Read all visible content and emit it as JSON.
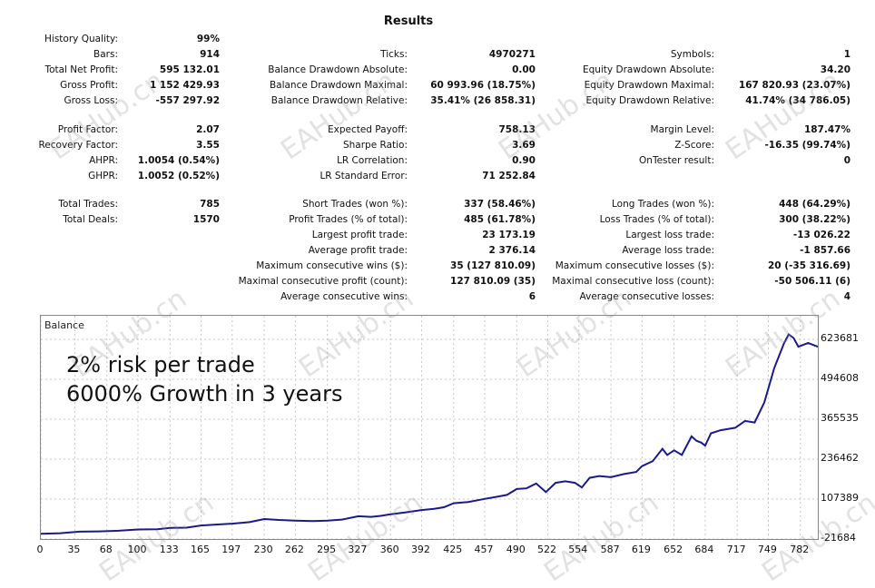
{
  "report": {
    "title": "Results",
    "col1": [
      {
        "label": "History Quality:",
        "value": "99%"
      },
      {
        "label": "Bars:",
        "value": "914"
      },
      {
        "label": "Total Net Profit:",
        "value": "595 132.01"
      },
      {
        "label": "Gross Profit:",
        "value": "1 152 429.93"
      },
      {
        "label": "Gross Loss:",
        "value": "-557 297.92"
      },
      {
        "label": "Profit Factor:",
        "value": "2.07"
      },
      {
        "label": "Recovery Factor:",
        "value": "3.55"
      },
      {
        "label": "AHPR:",
        "value": "1.0054 (0.54%)"
      },
      {
        "label": "GHPR:",
        "value": "1.0052 (0.52%)"
      },
      {
        "label": "Total Trades:",
        "value": "785"
      },
      {
        "label": "Total Deals:",
        "value": "1570"
      }
    ],
    "col2": [
      {
        "label": "Ticks:",
        "value": "4970271"
      },
      {
        "label": "Balance Drawdown Absolute:",
        "value": "0.00"
      },
      {
        "label": "Balance Drawdown Maximal:",
        "value": "60 993.96 (18.75%)"
      },
      {
        "label": "Balance Drawdown Relative:",
        "value": "35.41% (26 858.31)"
      },
      {
        "label": "Expected Payoff:",
        "value": "758.13"
      },
      {
        "label": "Sharpe Ratio:",
        "value": "3.69"
      },
      {
        "label": "LR Correlation:",
        "value": "0.90"
      },
      {
        "label": "LR Standard Error:",
        "value": "71 252.84"
      },
      {
        "label": "Short Trades (won %):",
        "value": "337 (58.46%)"
      },
      {
        "label": "Profit Trades (% of total):",
        "value": "485 (61.78%)"
      },
      {
        "label": "Largest profit trade:",
        "value": "23 173.19"
      },
      {
        "label": "Average profit trade:",
        "value": "2 376.14"
      },
      {
        "label": "Maximum consecutive wins ($):",
        "value": "35 (127 810.09)"
      },
      {
        "label": "Maximal consecutive profit (count):",
        "value": "127 810.09 (35)"
      },
      {
        "label": "Average consecutive wins:",
        "value": "6"
      }
    ],
    "col3": [
      {
        "label": "Symbols:",
        "value": "1"
      },
      {
        "label": "Equity Drawdown Absolute:",
        "value": "34.20"
      },
      {
        "label": "Equity Drawdown Maximal:",
        "value": "167 820.93 (23.07%)"
      },
      {
        "label": "Equity Drawdown Relative:",
        "value": "41.74% (34 786.05)"
      },
      {
        "label": "Margin Level:",
        "value": "187.47%"
      },
      {
        "label": "Z-Score:",
        "value": "-16.35 (99.74%)"
      },
      {
        "label": "OnTester result:",
        "value": "0"
      },
      {
        "label": "Long Trades (won %):",
        "value": "448 (64.29%)"
      },
      {
        "label": "Loss Trades (% of total):",
        "value": "300 (38.22%)"
      },
      {
        "label": "Largest loss trade:",
        "value": "-13 026.22"
      },
      {
        "label": "Average loss trade:",
        "value": "-1 857.66"
      },
      {
        "label": "Maximum consecutive losses ($):",
        "value": "20 (-35 316.69)"
      },
      {
        "label": "Maximal consecutive loss (count):",
        "value": "-50 506.11 (6)"
      },
      {
        "label": "Average consecutive losses:",
        "value": "4"
      }
    ]
  },
  "watermark": "EAHub.cn",
  "chart_data": {
    "type": "line",
    "title": "Balance",
    "annotations": [
      "2% risk per trade",
      "6000% Growth in 3 years"
    ],
    "x_ticks": [
      0,
      35,
      68,
      100,
      133,
      165,
      197,
      230,
      262,
      295,
      327,
      360,
      392,
      425,
      457,
      490,
      522,
      554,
      587,
      619,
      652,
      684,
      717,
      749,
      782
    ],
    "y_ticks": [
      -21684,
      107389,
      236462,
      365535,
      494608,
      623681
    ],
    "xlim": [
      0,
      800
    ],
    "ylim": [
      -21684,
      700000
    ],
    "grid": true,
    "line_color": "#1a1a8c",
    "series": [
      {
        "points": [
          [
            0,
            -5000
          ],
          [
            20,
            -3000
          ],
          [
            40,
            2000
          ],
          [
            60,
            3000
          ],
          [
            80,
            5000
          ],
          [
            100,
            9000
          ],
          [
            120,
            10000
          ],
          [
            133,
            14000
          ],
          [
            150,
            15000
          ],
          [
            165,
            22000
          ],
          [
            180,
            25000
          ],
          [
            197,
            28000
          ],
          [
            215,
            33000
          ],
          [
            230,
            43000
          ],
          [
            245,
            40000
          ],
          [
            262,
            38000
          ],
          [
            280,
            36000
          ],
          [
            295,
            38000
          ],
          [
            310,
            41000
          ],
          [
            327,
            52000
          ],
          [
            340,
            50000
          ],
          [
            350,
            53000
          ],
          [
            360,
            58000
          ],
          [
            375,
            64000
          ],
          [
            392,
            72000
          ],
          [
            405,
            76000
          ],
          [
            415,
            81000
          ],
          [
            425,
            94000
          ],
          [
            440,
            98000
          ],
          [
            457,
            108000
          ],
          [
            470,
            115000
          ],
          [
            480,
            121000
          ],
          [
            490,
            140000
          ],
          [
            500,
            142000
          ],
          [
            510,
            158000
          ],
          [
            520,
            130000
          ],
          [
            530,
            160000
          ],
          [
            540,
            165000
          ],
          [
            550,
            160000
          ],
          [
            557,
            145000
          ],
          [
            565,
            176000
          ],
          [
            575,
            182000
          ],
          [
            587,
            178000
          ],
          [
            600,
            188000
          ],
          [
            613,
            195000
          ],
          [
            619,
            214000
          ],
          [
            630,
            230000
          ],
          [
            640,
            270000
          ],
          [
            645,
            250000
          ],
          [
            652,
            265000
          ],
          [
            660,
            250000
          ],
          [
            670,
            310000
          ],
          [
            675,
            296000
          ],
          [
            680,
            290000
          ],
          [
            684,
            280000
          ],
          [
            690,
            320000
          ],
          [
            700,
            330000
          ],
          [
            715,
            338000
          ],
          [
            725,
            360000
          ],
          [
            735,
            355000
          ],
          [
            745,
            420000
          ],
          [
            755,
            530000
          ],
          [
            765,
            610000
          ],
          [
            770,
            640000
          ],
          [
            775,
            628000
          ],
          [
            780,
            600000
          ],
          [
            790,
            612000
          ],
          [
            800,
            600000
          ]
        ]
      }
    ]
  }
}
